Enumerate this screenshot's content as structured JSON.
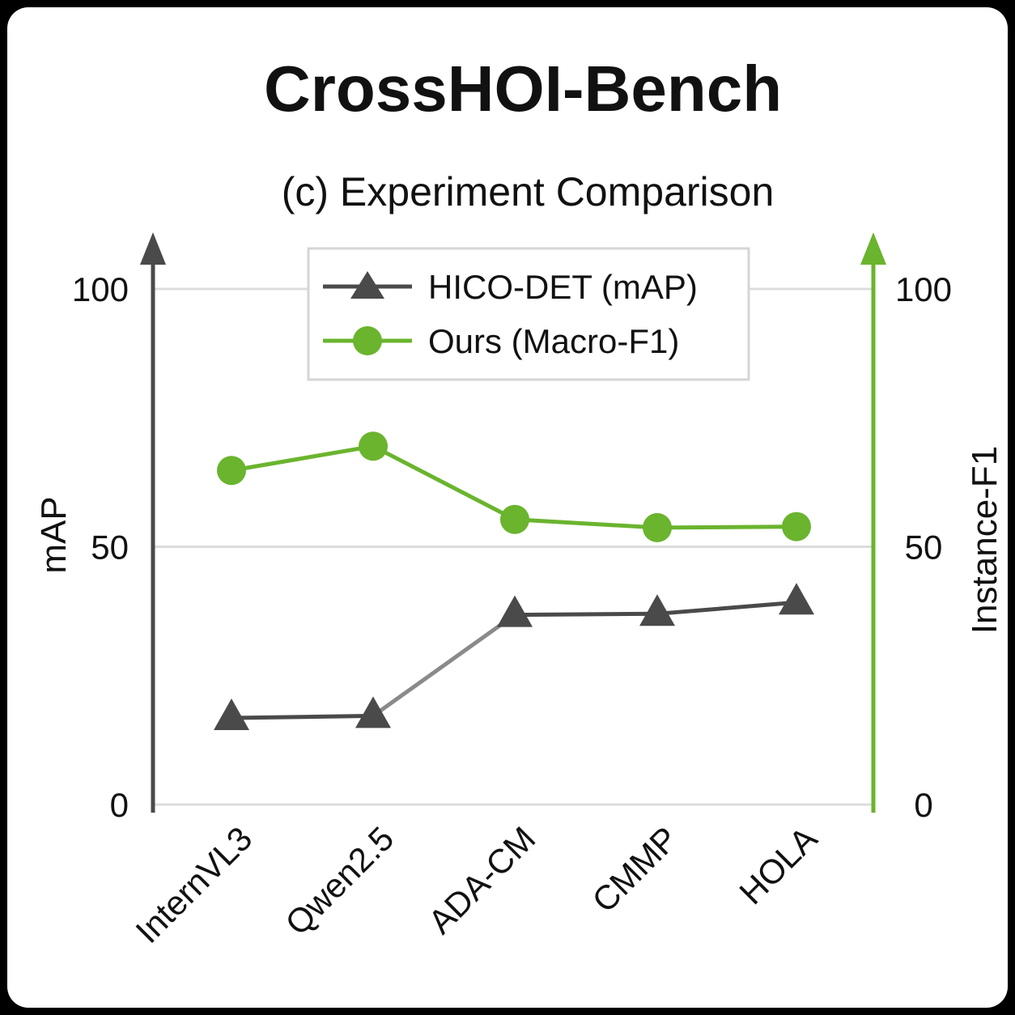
{
  "chart_data": {
    "type": "line",
    "title": "CrossHOI-Bench",
    "subtitle": "(c) Experiment Comparison",
    "categories": [
      "InternVL3",
      "Qwen2.5",
      "ADA-CM",
      "CMMP",
      "HOLA"
    ],
    "series": [
      {
        "name": "HICO-DET (mAP)",
        "axis": "left",
        "marker": "triangle",
        "color": "#4a4a4a",
        "values": [
          16.8,
          17.2,
          36.8,
          37.0,
          39.2
        ]
      },
      {
        "name": "Ours (Macro-F1)",
        "axis": "right",
        "marker": "circle",
        "color": "#6ab42e",
        "values": [
          64.8,
          69.5,
          55.3,
          53.7,
          53.9
        ]
      }
    ],
    "ylabel_left": "mAP",
    "ylabel_right": "Instance-F1",
    "ylim_left": [
      0,
      100
    ],
    "ylim_right": [
      0,
      100
    ],
    "yticks_left": [
      "0",
      "50",
      "100"
    ],
    "yticks_right": [
      "0",
      "50",
      "100"
    ],
    "grid": true,
    "legend_position": "top-center"
  }
}
